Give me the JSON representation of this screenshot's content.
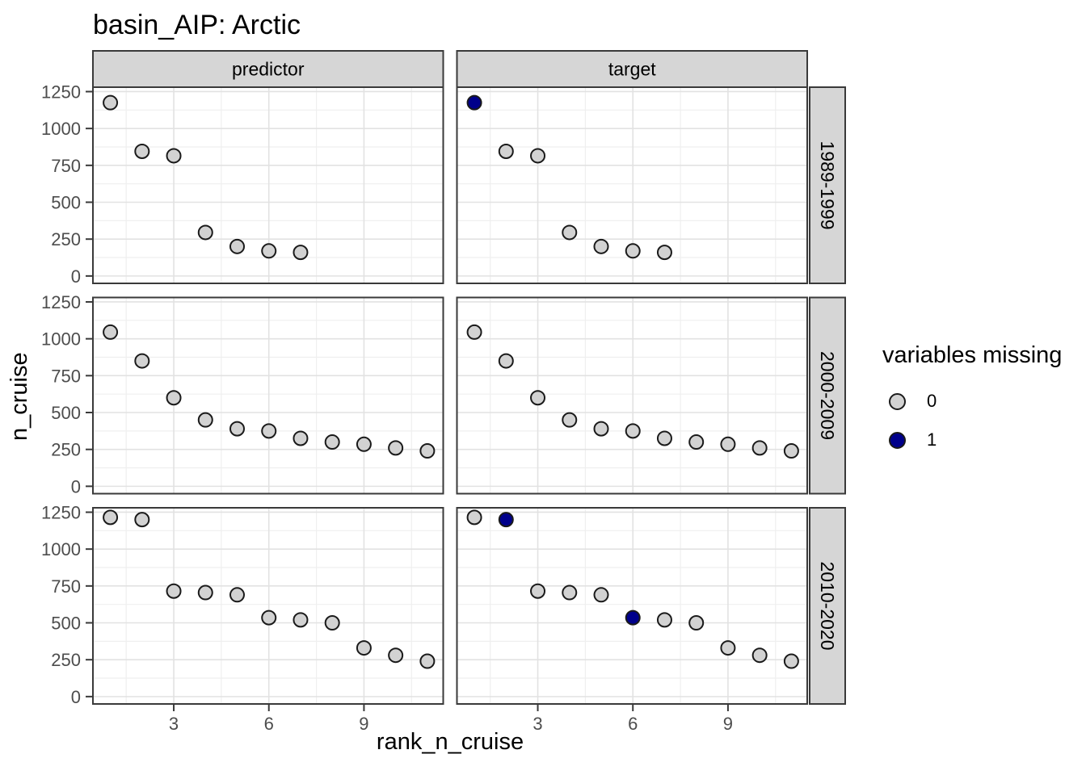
{
  "title": "basin_AIP: Arctic",
  "chart_data": {
    "type": "scatter",
    "title": "basin_AIP: Arctic",
    "xlabel": "rank_n_cruise",
    "ylabel": "n_cruise",
    "x_ticks": [
      3,
      6,
      9
    ],
    "y_ticks": [
      0,
      250,
      500,
      750,
      1000,
      1250
    ],
    "x_minor": [
      1.5,
      4.5,
      7.5,
      10.5
    ],
    "y_minor": [
      125,
      375,
      625,
      875,
      1125
    ],
    "xlim": [
      0.45,
      11.5
    ],
    "ylim": [
      -50,
      1280
    ],
    "facet_cols": [
      "predictor",
      "target"
    ],
    "facet_rows": [
      "1989-1999",
      "2000-2009",
      "2010-2020"
    ],
    "legend": {
      "title": "variables missing",
      "items": [
        {
          "label": "0",
          "color": "#d2d2d2"
        },
        {
          "label": "1",
          "color": "#00008B"
        }
      ]
    },
    "panels": [
      {
        "row": 0,
        "col": 0,
        "x": [
          1,
          2,
          3,
          4,
          5,
          6,
          7
        ],
        "y": [
          1175,
          845,
          815,
          295,
          200,
          170,
          160
        ],
        "missing": [
          0,
          0,
          0,
          0,
          0,
          0,
          0
        ]
      },
      {
        "row": 0,
        "col": 1,
        "x": [
          1,
          2,
          3,
          4,
          5,
          6,
          7
        ],
        "y": [
          1175,
          845,
          815,
          295,
          200,
          170,
          160
        ],
        "missing": [
          1,
          0,
          0,
          0,
          0,
          0,
          0
        ]
      },
      {
        "row": 1,
        "col": 0,
        "x": [
          1,
          2,
          3,
          4,
          5,
          6,
          7,
          8,
          9,
          10,
          11
        ],
        "y": [
          1045,
          850,
          600,
          450,
          390,
          375,
          325,
          300,
          285,
          260,
          240
        ],
        "missing": [
          0,
          0,
          0,
          0,
          0,
          0,
          0,
          0,
          0,
          0,
          0
        ]
      },
      {
        "row": 1,
        "col": 1,
        "x": [
          1,
          2,
          3,
          4,
          5,
          6,
          7,
          8,
          9,
          10,
          11
        ],
        "y": [
          1045,
          850,
          600,
          450,
          390,
          375,
          325,
          300,
          285,
          260,
          240
        ],
        "missing": [
          0,
          0,
          0,
          0,
          0,
          0,
          0,
          0,
          0,
          0,
          0
        ]
      },
      {
        "row": 2,
        "col": 0,
        "x": [
          1,
          2,
          3,
          4,
          5,
          6,
          7,
          8,
          9,
          10,
          11
        ],
        "y": [
          1215,
          1200,
          715,
          705,
          690,
          535,
          520,
          500,
          330,
          280,
          240
        ],
        "missing": [
          0,
          0,
          0,
          0,
          0,
          0,
          0,
          0,
          0,
          0,
          0
        ]
      },
      {
        "row": 2,
        "col": 1,
        "x": [
          1,
          2,
          3,
          4,
          5,
          6,
          7,
          8,
          9,
          10,
          11
        ],
        "y": [
          1215,
          1200,
          715,
          705,
          690,
          535,
          520,
          500,
          330,
          280,
          240
        ],
        "missing": [
          0,
          1,
          0,
          0,
          0,
          1,
          0,
          0,
          0,
          0,
          0
        ]
      }
    ]
  },
  "colors": {
    "strip_bg": "#d6d6d6",
    "border": "#3a3a3a",
    "grid_major": "#e2e2e2",
    "grid_minor": "#efefef",
    "tick_text": "#4d4d4d",
    "point_stroke": "#1a1a1a",
    "text": "#000000"
  }
}
